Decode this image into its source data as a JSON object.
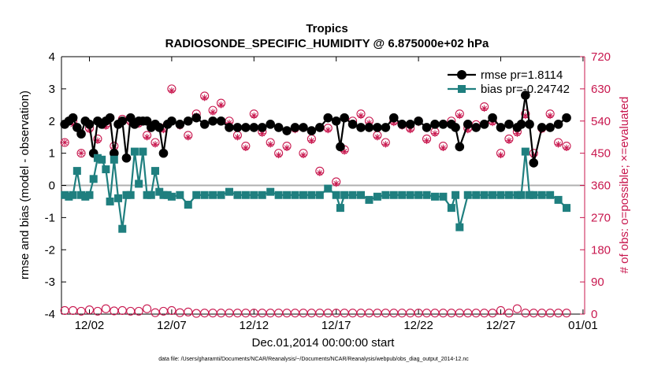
{
  "chart_data": {
    "type": "line",
    "title": "Tropics",
    "subtitle": "RADIOSONDE_SPECIFIC_HUMIDITY @ 6.875000e+02 hPa",
    "xlabel": "Dec.01,2014 00:00:00 start",
    "ylabel": "rmse and bias (model - observation)",
    "y2label": "# of obs: o=possible; ×=evaluated",
    "footnote": "data file: /Users/gharamti/Documents/NCAR/Reanalysis/~/Documents/NCAR/Reanalysis/webpub/obs_diag_output_2014-12.nc",
    "xlim": [
      0.5,
      31.0
    ],
    "ylim": [
      -4,
      4
    ],
    "y2lim": [
      0,
      720
    ],
    "x_ticks": [
      {
        "x": 2,
        "label": "12/02"
      },
      {
        "x": 7,
        "label": "12/07"
      },
      {
        "x": 12,
        "label": "12/12"
      },
      {
        "x": 17,
        "label": "12/17"
      },
      {
        "x": 22,
        "label": "12/22"
      },
      {
        "x": 27,
        "label": "12/27"
      },
      {
        "x": 32,
        "label": "01/01"
      }
    ],
    "y_ticks": [
      -4,
      -3,
      -2,
      -1,
      0,
      1,
      2,
      3,
      4
    ],
    "y2_ticks": [
      0,
      90,
      180,
      270,
      360,
      450,
      540,
      630,
      720
    ],
    "legend_location": "top-right",
    "series": [
      {
        "name": "rmse pr=1.8114",
        "color": "#000000",
        "marker": "circle",
        "x": [
          0.5,
          0.75,
          1,
          1.25,
          1.5,
          1.75,
          2,
          2.25,
          2.5,
          2.75,
          3,
          3.25,
          3.5,
          3.75,
          4,
          4.25,
          4.5,
          4.75,
          5,
          5.25,
          5.5,
          5.75,
          6,
          6.25,
          6.5,
          6.75,
          7,
          7.5,
          8,
          8.5,
          9,
          9.5,
          10,
          10.5,
          11,
          11.5,
          12,
          12.5,
          13,
          13.5,
          14,
          14.5,
          15,
          15.5,
          16,
          16.5,
          17,
          17.25,
          17.5,
          18,
          18.5,
          19,
          19.5,
          20,
          20.5,
          21,
          21.5,
          22,
          22.5,
          23,
          23.5,
          24,
          24.25,
          24.5,
          25,
          25.5,
          26,
          26.5,
          27,
          27.5,
          28,
          28.25,
          28.5,
          28.75,
          29,
          29.5,
          30,
          30.5,
          31
        ],
        "values": [
          1.9,
          2.0,
          2.1,
          1.8,
          1.6,
          2.0,
          1.9,
          1.0,
          2.0,
          1.9,
          2.0,
          2.1,
          1.0,
          1.9,
          2.0,
          0.85,
          2.1,
          1.9,
          2.0,
          2.0,
          2.0,
          1.8,
          1.9,
          1.8,
          1.0,
          1.9,
          2.0,
          1.9,
          2.0,
          2.1,
          1.9,
          2.0,
          2.0,
          1.8,
          1.8,
          1.8,
          1.8,
          1.8,
          1.9,
          1.8,
          1.7,
          1.8,
          1.8,
          1.7,
          1.8,
          2.1,
          2.0,
          1.2,
          2.1,
          1.9,
          1.8,
          1.8,
          1.8,
          1.8,
          2.1,
          1.9,
          1.9,
          2.0,
          1.8,
          1.9,
          1.9,
          1.9,
          1.8,
          1.2,
          1.9,
          1.8,
          1.9,
          2.1,
          1.8,
          1.9,
          1.8,
          1.9,
          2.8,
          1.9,
          0.7,
          1.8,
          1.8,
          1.9,
          2.1
        ]
      },
      {
        "name": "bias pr=-0.24742",
        "color": "#1f7f7f",
        "marker": "square",
        "x": [
          0.5,
          0.75,
          1,
          1.25,
          1.5,
          1.75,
          2,
          2.25,
          2.5,
          2.75,
          3,
          3.25,
          3.5,
          3.75,
          4,
          4.25,
          4.5,
          4.75,
          5,
          5.25,
          5.5,
          5.75,
          6,
          6.25,
          6.5,
          6.75,
          7,
          7.5,
          8,
          8.5,
          9,
          9.5,
          10,
          10.5,
          11,
          11.5,
          12,
          12.5,
          13,
          13.5,
          14,
          14.5,
          15,
          15.5,
          16,
          16.5,
          17,
          17.25,
          17.5,
          18,
          18.5,
          19,
          19.5,
          20,
          20.5,
          21,
          21.5,
          22,
          22.5,
          23,
          23.5,
          24,
          24.25,
          24.5,
          25,
          25.5,
          26,
          26.5,
          27,
          27.5,
          28,
          28.25,
          28.5,
          28.75,
          29,
          29.5,
          30,
          30.5,
          31
        ],
        "values": [
          -0.3,
          -0.35,
          -0.3,
          0.45,
          -0.3,
          -0.35,
          -0.3,
          0.2,
          0.85,
          0.8,
          0.5,
          -0.5,
          0.8,
          -0.4,
          -1.35,
          -0.3,
          -0.3,
          1.05,
          0.05,
          1.05,
          -0.3,
          -0.3,
          0.45,
          -0.2,
          -0.3,
          -0.3,
          -0.35,
          -0.3,
          -0.6,
          -0.3,
          -0.3,
          -0.3,
          -0.3,
          -0.2,
          -0.3,
          -0.3,
          -0.3,
          -0.3,
          -0.2,
          -0.3,
          -0.3,
          -0.3,
          -0.3,
          -0.3,
          -0.3,
          -0.1,
          -0.3,
          -0.7,
          -0.3,
          -0.3,
          -0.3,
          -0.45,
          -0.35,
          -0.3,
          -0.3,
          -0.3,
          -0.3,
          -0.3,
          -0.3,
          -0.35,
          -0.35,
          -0.7,
          -0.3,
          -1.3,
          -0.3,
          -0.3,
          -0.3,
          -0.3,
          -0.3,
          -0.3,
          -0.3,
          -0.3,
          1.05,
          -0.3,
          -0.3,
          -0.3,
          -0.3,
          -0.45,
          -0.7
        ]
      }
    ],
    "obs_series": [
      {
        "name": "possible",
        "axis": "right",
        "color": "#c8174e",
        "marker": "circle-open",
        "x": [
          0.5,
          1,
          1.5,
          2,
          2.5,
          3,
          3.5,
          4,
          4.5,
          5,
          5.5,
          6,
          6.5,
          7,
          7.5,
          8,
          8.5,
          9,
          9.5,
          10,
          10.5,
          11,
          11.5,
          12,
          12.5,
          13,
          13.5,
          14,
          14.5,
          15,
          15.5,
          16,
          16.5,
          17,
          17.5,
          18,
          18.5,
          19,
          19.5,
          20,
          20.5,
          21,
          21.5,
          22,
          22.5,
          23,
          23.5,
          24,
          24.5,
          25,
          25.5,
          26,
          26.5,
          27,
          27.5,
          28,
          28.5,
          29,
          29.5,
          30,
          30.5,
          31
        ],
        "values": [
          480,
          540,
          450,
          520,
          490,
          530,
          470,
          545,
          540,
          535,
          500,
          480,
          520,
          630,
          530,
          500,
          560,
          610,
          570,
          590,
          540,
          500,
          470,
          560,
          510,
          480,
          450,
          470,
          520,
          450,
          490,
          400,
          520,
          370,
          460,
          540,
          560,
          540,
          500,
          480,
          540,
          530,
          520,
          540,
          490,
          510,
          470,
          540,
          560,
          520,
          530,
          580,
          540,
          450,
          490,
          510,
          560,
          450,
          520,
          560,
          480,
          470
        ]
      },
      {
        "name": "evaluated",
        "axis": "right",
        "color": "#c8174e",
        "marker": "asterisk",
        "x": [
          0.5,
          1,
          1.5,
          2,
          2.5,
          3,
          3.5,
          4,
          4.5,
          5,
          5.5,
          6,
          6.5,
          7,
          7.5,
          8,
          8.5,
          9,
          9.5,
          10,
          10.5,
          11,
          11.5,
          12,
          12.5,
          13,
          13.5,
          14,
          14.5,
          15,
          15.5,
          16,
          16.5,
          17,
          17.5,
          18,
          18.5,
          19,
          19.5,
          20,
          20.5,
          21,
          21.5,
          22,
          22.5,
          23,
          23.5,
          24,
          24.5,
          25,
          25.5,
          26,
          26.5,
          27,
          27.5,
          28,
          28.5,
          29,
          29.5,
          30,
          30.5,
          31
        ],
        "values": [
          480,
          530,
          450,
          515,
          485,
          525,
          465,
          540,
          535,
          530,
          495,
          475,
          515,
          625,
          525,
          495,
          555,
          605,
          565,
          585,
          535,
          495,
          465,
          555,
          505,
          475,
          445,
          465,
          515,
          445,
          485,
          395,
          515,
          365,
          455,
          535,
          555,
          535,
          495,
          475,
          535,
          525,
          515,
          535,
          485,
          505,
          465,
          535,
          555,
          515,
          525,
          575,
          535,
          445,
          485,
          505,
          555,
          445,
          515,
          555,
          475,
          465
        ]
      },
      {
        "name": "possible-low",
        "axis": "right",
        "color": "#c8174e",
        "marker": "circle-open",
        "x": [
          0.5,
          1,
          1.5,
          2,
          2.5,
          3,
          3.5,
          4,
          4.5,
          5,
          5.5,
          6,
          6.5,
          7,
          7.5,
          8,
          8.5,
          9,
          9.5,
          10,
          10.5,
          11,
          11.5,
          12,
          12.5,
          13,
          13.5,
          14,
          14.5,
          15,
          15.5,
          16,
          16.5,
          17,
          17.5,
          18,
          18.5,
          19,
          19.5,
          20,
          20.5,
          21,
          21.5,
          22,
          22.5,
          23,
          23.5,
          24,
          24.5,
          25,
          25.5,
          26,
          26.5,
          27,
          27.5,
          28,
          28.5,
          29,
          29.5,
          30,
          30.5,
          31
        ],
        "values": [
          10,
          10,
          8,
          12,
          8,
          15,
          9,
          10,
          8,
          8,
          15,
          4,
          8,
          10,
          4,
          6,
          2,
          3,
          3,
          3,
          3,
          3,
          3,
          3,
          3,
          3,
          3,
          3,
          3,
          3,
          3,
          3,
          3,
          3,
          3,
          3,
          3,
          3,
          3,
          3,
          3,
          3,
          3,
          3,
          3,
          3,
          3,
          3,
          3,
          3,
          3,
          3,
          3,
          10,
          3,
          15,
          3,
          3,
          3,
          3,
          3,
          3
        ]
      }
    ]
  }
}
